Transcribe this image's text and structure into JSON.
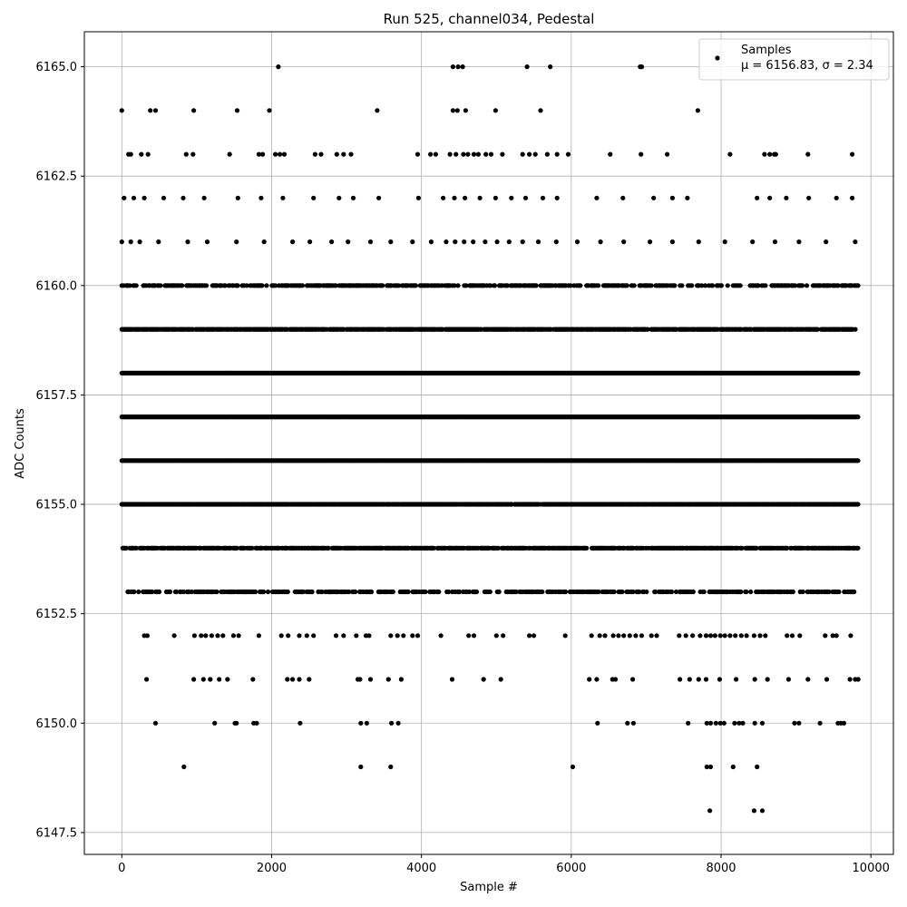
{
  "chart_data": {
    "type": "scatter",
    "title": "Run 525, channel034, Pedestal",
    "xlabel": "Sample #",
    "ylabel": "ADC Counts",
    "xlim": [
      -500,
      10300
    ],
    "ylim": [
      6147.0,
      6165.8
    ],
    "xticks": [
      0,
      2000,
      4000,
      6000,
      8000,
      10000
    ],
    "xtick_labels": [
      "0",
      "2000",
      "4000",
      "6000",
      "8000",
      "10000"
    ],
    "yticks": [
      6147.5,
      6150.0,
      6152.5,
      6155.0,
      6157.5,
      6160.0,
      6162.5,
      6165.0
    ],
    "ytick_labels": [
      "6147.5",
      "6150.0",
      "6152.5",
      "6155.0",
      "6157.5",
      "6160.0",
      "6162.5",
      "6165.0"
    ],
    "grid": true,
    "legend_position": "top-right",
    "marker_color": "#000000",
    "series": [
      {
        "name": "Samples",
        "stats_label": "μ = 6156.83, σ = 2.34",
        "points": [
          [
            0,
            6164
          ],
          [
            380,
            6164
          ],
          [
            450,
            6164
          ],
          [
            960,
            6164
          ],
          [
            1540,
            6164
          ],
          [
            1970,
            6164
          ],
          [
            3410,
            6164
          ],
          [
            4420,
            6164
          ],
          [
            4480,
            6164
          ],
          [
            4590,
            6164
          ],
          [
            4990,
            6164
          ],
          [
            5590,
            6164
          ],
          [
            7690,
            6164
          ],
          [
            2090,
            6165
          ],
          [
            4420,
            6165
          ],
          [
            4490,
            6165
          ],
          [
            4550,
            6165
          ],
          [
            5410,
            6165
          ],
          [
            5720,
            6165
          ],
          [
            6920,
            6165
          ],
          [
            6940,
            6165
          ],
          [
            90,
            6163
          ],
          [
            120,
            6163
          ],
          [
            260,
            6163
          ],
          [
            350,
            6163
          ],
          [
            860,
            6163
          ],
          [
            950,
            6163
          ],
          [
            1440,
            6163
          ],
          [
            1830,
            6163
          ],
          [
            1880,
            6163
          ],
          [
            2050,
            6163
          ],
          [
            2110,
            6163
          ],
          [
            2170,
            6163
          ],
          [
            2580,
            6163
          ],
          [
            2660,
            6163
          ],
          [
            2870,
            6163
          ],
          [
            2960,
            6163
          ],
          [
            3060,
            6163
          ],
          [
            3950,
            6163
          ],
          [
            4120,
            6163
          ],
          [
            4190,
            6163
          ],
          [
            4380,
            6163
          ],
          [
            4460,
            6163
          ],
          [
            4560,
            6163
          ],
          [
            4620,
            6163
          ],
          [
            4700,
            6163
          ],
          [
            4760,
            6163
          ],
          [
            4860,
            6163
          ],
          [
            4930,
            6163
          ],
          [
            5080,
            6163
          ],
          [
            5350,
            6163
          ],
          [
            5440,
            6163
          ],
          [
            5520,
            6163
          ],
          [
            5680,
            6163
          ],
          [
            5810,
            6163
          ],
          [
            5960,
            6163
          ],
          [
            6520,
            6163
          ],
          [
            6930,
            6163
          ],
          [
            7280,
            6163
          ],
          [
            8120,
            6163
          ],
          [
            8580,
            6163
          ],
          [
            8650,
            6163
          ],
          [
            8710,
            6163
          ],
          [
            8730,
            6163
          ],
          [
            9160,
            6163
          ],
          [
            9750,
            6163
          ],
          [
            0,
            6161
          ],
          [
            120,
            6161
          ],
          [
            240,
            6161
          ],
          [
            490,
            6161
          ],
          [
            880,
            6161
          ],
          [
            1140,
            6161
          ],
          [
            1530,
            6161
          ],
          [
            1900,
            6161
          ],
          [
            2280,
            6161
          ],
          [
            2510,
            6161
          ],
          [
            2800,
            6161
          ],
          [
            3020,
            6161
          ],
          [
            3320,
            6161
          ],
          [
            3590,
            6161
          ],
          [
            3880,
            6161
          ],
          [
            4130,
            6161
          ],
          [
            4330,
            6161
          ],
          [
            4450,
            6161
          ],
          [
            4570,
            6161
          ],
          [
            4690,
            6161
          ],
          [
            4850,
            6161
          ],
          [
            5010,
            6161
          ],
          [
            5170,
            6161
          ],
          [
            5350,
            6161
          ],
          [
            5560,
            6161
          ],
          [
            5800,
            6161
          ],
          [
            6080,
            6161
          ],
          [
            6390,
            6161
          ],
          [
            6700,
            6161
          ],
          [
            7050,
            6161
          ],
          [
            7350,
            6161
          ],
          [
            7700,
            6161
          ],
          [
            8050,
            6161
          ],
          [
            8420,
            6161
          ],
          [
            8720,
            6161
          ],
          [
            9040,
            6161
          ],
          [
            9400,
            6161
          ],
          [
            9790,
            6161
          ],
          [
            30,
            6162
          ],
          [
            160,
            6162
          ],
          [
            300,
            6162
          ],
          [
            560,
            6162
          ],
          [
            820,
            6162
          ],
          [
            1100,
            6162
          ],
          [
            1550,
            6162
          ],
          [
            1860,
            6162
          ],
          [
            2150,
            6162
          ],
          [
            2560,
            6162
          ],
          [
            2900,
            6162
          ],
          [
            3090,
            6162
          ],
          [
            3430,
            6162
          ],
          [
            3960,
            6162
          ],
          [
            4290,
            6162
          ],
          [
            4440,
            6162
          ],
          [
            4580,
            6162
          ],
          [
            4780,
            6162
          ],
          [
            4990,
            6162
          ],
          [
            5200,
            6162
          ],
          [
            5390,
            6162
          ],
          [
            5620,
            6162
          ],
          [
            5810,
            6162
          ],
          [
            6340,
            6162
          ],
          [
            6690,
            6162
          ],
          [
            7100,
            6162
          ],
          [
            7350,
            6162
          ],
          [
            7550,
            6162
          ],
          [
            8480,
            6162
          ],
          [
            8650,
            6162
          ],
          [
            8870,
            6162
          ],
          [
            9170,
            6162
          ],
          [
            9540,
            6162
          ],
          [
            9750,
            6162
          ]
        ],
        "bands": [
          {
            "y": 6160,
            "from": 0,
            "to": 9830,
            "density": 0.55
          },
          {
            "y": 6159,
            "from": 0,
            "to": 9830,
            "density": 0.85
          },
          {
            "y": 6158,
            "from": 0,
            "to": 9830,
            "density": 1.0
          },
          {
            "y": 6157,
            "from": 0,
            "to": 9830,
            "density": 1.0
          },
          {
            "y": 6156,
            "from": 0,
            "to": 9830,
            "density": 1.0
          },
          {
            "y": 6155,
            "from": 0,
            "to": 9830,
            "density": 0.9
          },
          {
            "y": 6154,
            "from": 0,
            "to": 9830,
            "density": 0.75
          },
          {
            "y": 6153,
            "from": 80,
            "to": 9800,
            "density": 0.45
          }
        ],
        "sparse_points": [
          [
            300,
            6152
          ],
          [
            340,
            6152
          ],
          [
            700,
            6152
          ],
          [
            970,
            6152
          ],
          [
            1060,
            6152
          ],
          [
            1120,
            6152
          ],
          [
            1200,
            6152
          ],
          [
            1280,
            6152
          ],
          [
            1350,
            6152
          ],
          [
            1490,
            6152
          ],
          [
            1560,
            6152
          ],
          [
            1830,
            6152
          ],
          [
            2130,
            6152
          ],
          [
            2220,
            6152
          ],
          [
            2370,
            6152
          ],
          [
            2470,
            6152
          ],
          [
            2560,
            6152
          ],
          [
            2860,
            6152
          ],
          [
            2960,
            6152
          ],
          [
            3130,
            6152
          ],
          [
            3260,
            6152
          ],
          [
            3300,
            6152
          ],
          [
            3590,
            6152
          ],
          [
            3680,
            6152
          ],
          [
            3760,
            6152
          ],
          [
            3880,
            6152
          ],
          [
            3950,
            6152
          ],
          [
            4260,
            6152
          ],
          [
            4630,
            6152
          ],
          [
            4700,
            6152
          ],
          [
            5000,
            6152
          ],
          [
            5090,
            6152
          ],
          [
            5440,
            6152
          ],
          [
            5500,
            6152
          ],
          [
            5920,
            6152
          ],
          [
            6270,
            6152
          ],
          [
            6380,
            6152
          ],
          [
            6450,
            6152
          ],
          [
            6560,
            6152
          ],
          [
            6630,
            6152
          ],
          [
            6700,
            6152
          ],
          [
            6780,
            6152
          ],
          [
            6860,
            6152
          ],
          [
            6940,
            6152
          ],
          [
            7070,
            6152
          ],
          [
            7140,
            6152
          ],
          [
            7440,
            6152
          ],
          [
            7530,
            6152
          ],
          [
            7620,
            6152
          ],
          [
            7720,
            6152
          ],
          [
            7800,
            6152
          ],
          [
            7860,
            6152
          ],
          [
            7920,
            6152
          ],
          [
            7990,
            6152
          ],
          [
            8050,
            6152
          ],
          [
            8120,
            6152
          ],
          [
            8190,
            6152
          ],
          [
            8270,
            6152
          ],
          [
            8340,
            6152
          ],
          [
            8440,
            6152
          ],
          [
            8520,
            6152
          ],
          [
            8590,
            6152
          ],
          [
            8880,
            6152
          ],
          [
            8950,
            6152
          ],
          [
            9050,
            6152
          ],
          [
            9390,
            6152
          ],
          [
            9490,
            6152
          ],
          [
            9540,
            6152
          ],
          [
            9730,
            6152
          ],
          [
            330,
            6151
          ],
          [
            960,
            6151
          ],
          [
            1090,
            6151
          ],
          [
            1180,
            6151
          ],
          [
            1300,
            6151
          ],
          [
            1410,
            6151
          ],
          [
            1750,
            6151
          ],
          [
            2210,
            6151
          ],
          [
            2280,
            6151
          ],
          [
            2370,
            6151
          ],
          [
            2500,
            6151
          ],
          [
            3150,
            6151
          ],
          [
            3180,
            6151
          ],
          [
            3320,
            6151
          ],
          [
            3560,
            6151
          ],
          [
            3730,
            6151
          ],
          [
            4410,
            6151
          ],
          [
            4830,
            6151
          ],
          [
            5060,
            6151
          ],
          [
            6240,
            6151
          ],
          [
            6340,
            6151
          ],
          [
            6550,
            6151
          ],
          [
            6590,
            6151
          ],
          [
            6820,
            6151
          ],
          [
            7450,
            6151
          ],
          [
            7580,
            6151
          ],
          [
            7700,
            6151
          ],
          [
            7800,
            6151
          ],
          [
            7980,
            6151
          ],
          [
            8200,
            6151
          ],
          [
            8450,
            6151
          ],
          [
            8620,
            6151
          ],
          [
            8900,
            6151
          ],
          [
            9160,
            6151
          ],
          [
            9410,
            6151
          ],
          [
            9720,
            6151
          ],
          [
            9790,
            6151
          ],
          [
            9830,
            6151
          ],
          [
            450,
            6150
          ],
          [
            1240,
            6150
          ],
          [
            1510,
            6150
          ],
          [
            1530,
            6150
          ],
          [
            1760,
            6150
          ],
          [
            1800,
            6150
          ],
          [
            2380,
            6150
          ],
          [
            3190,
            6150
          ],
          [
            3270,
            6150
          ],
          [
            3600,
            6150
          ],
          [
            3690,
            6150
          ],
          [
            6350,
            6150
          ],
          [
            6750,
            6150
          ],
          [
            6830,
            6150
          ],
          [
            7560,
            6150
          ],
          [
            7810,
            6150
          ],
          [
            7860,
            6150
          ],
          [
            7930,
            6150
          ],
          [
            7990,
            6150
          ],
          [
            8040,
            6150
          ],
          [
            8180,
            6150
          ],
          [
            8240,
            6150
          ],
          [
            8290,
            6150
          ],
          [
            8450,
            6150
          ],
          [
            8550,
            6150
          ],
          [
            8980,
            6150
          ],
          [
            9040,
            6150
          ],
          [
            9320,
            6150
          ],
          [
            9560,
            6150
          ],
          [
            9600,
            6150
          ],
          [
            9640,
            6150
          ],
          [
            830,
            6149
          ],
          [
            3190,
            6149
          ],
          [
            3590,
            6149
          ],
          [
            6020,
            6149
          ],
          [
            7810,
            6149
          ],
          [
            7860,
            6149
          ],
          [
            8160,
            6149
          ],
          [
            8480,
            6149
          ],
          [
            7850,
            6148
          ],
          [
            8440,
            6148
          ],
          [
            8550,
            6148
          ]
        ]
      }
    ]
  }
}
